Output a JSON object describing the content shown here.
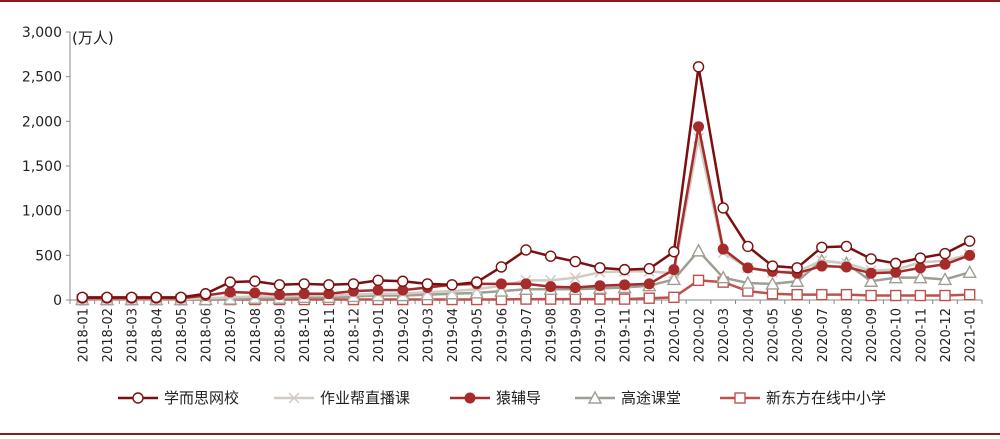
{
  "chart_data": {
    "type": "line",
    "unit_label": "(万人)",
    "ylim": [
      0,
      3000
    ],
    "yticks": [
      0,
      500,
      1000,
      1500,
      2000,
      2500,
      3000
    ],
    "ytick_labels": [
      "0",
      "500",
      "1,000",
      "1,500",
      "2,000",
      "2,500",
      "3,000"
    ],
    "grid": false,
    "legend_position": "bottom",
    "categories": [
      "2018-01",
      "2018-02",
      "2018-03",
      "2018-04",
      "2018-05",
      "2018-06",
      "2018-07",
      "2018-08",
      "2018-09",
      "2018-10",
      "2018-11",
      "2018-12",
      "2019-01",
      "2019-02",
      "2019-03",
      "2019-04",
      "2019-05",
      "2019-06",
      "2019-07",
      "2019-08",
      "2019-09",
      "2019-10",
      "2019-11",
      "2019-12",
      "2020-01",
      "2020-02",
      "2020-03",
      "2020-04",
      "2020-05",
      "2020-06",
      "2020-07",
      "2020-08",
      "2020-09",
      "2020-10",
      "2020-11",
      "2020-12",
      "2021-01"
    ],
    "series": [
      {
        "name": "学而思网校",
        "color": "#7b0f0f",
        "marker": "circle-open",
        "values": [
          30,
          30,
          30,
          30,
          30,
          70,
          200,
          210,
          170,
          180,
          170,
          180,
          220,
          210,
          180,
          170,
          200,
          370,
          560,
          490,
          430,
          360,
          340,
          350,
          540,
          2610,
          1030,
          600,
          380,
          360,
          590,
          600,
          460,
          410,
          470,
          520,
          660
        ]
      },
      {
        "name": "作业帮直播课",
        "color": "#d0ccc4",
        "marker": "x",
        "values": [
          10,
          10,
          10,
          10,
          10,
          20,
          30,
          40,
          40,
          50,
          50,
          60,
          70,
          70,
          90,
          100,
          120,
          160,
          220,
          220,
          250,
          310,
          320,
          320,
          300,
          1810,
          530,
          360,
          310,
          320,
          440,
          410,
          330,
          340,
          420,
          440,
          510
        ]
      },
      {
        "name": "猿辅导",
        "color": "#a62b2b",
        "marker": "circle-filled",
        "values": [
          20,
          20,
          20,
          20,
          20,
          50,
          90,
          80,
          60,
          70,
          70,
          100,
          110,
          110,
          140,
          170,
          180,
          180,
          180,
          150,
          140,
          160,
          170,
          180,
          340,
          1940,
          570,
          360,
          320,
          300,
          380,
          370,
          300,
          310,
          360,
          400,
          500
        ]
      },
      {
        "name": "高途课堂",
        "color": "#9e9e94",
        "marker": "triangle-open",
        "values": [
          5,
          5,
          5,
          5,
          5,
          5,
          10,
          20,
          20,
          30,
          30,
          40,
          50,
          50,
          60,
          70,
          80,
          100,
          120,
          120,
          120,
          130,
          140,
          160,
          230,
          550,
          250,
          190,
          180,
          210,
          440,
          410,
          210,
          250,
          250,
          230,
          310
        ]
      },
      {
        "name": "新东方在线中小学",
        "color": "#c0504d",
        "marker": "square-open",
        "values": [
          5,
          5,
          5,
          5,
          5,
          5,
          5,
          5,
          5,
          5,
          5,
          5,
          5,
          5,
          5,
          5,
          5,
          5,
          10,
          10,
          10,
          10,
          10,
          20,
          30,
          220,
          200,
          100,
          70,
          60,
          60,
          60,
          50,
          50,
          50,
          50,
          60
        ]
      }
    ]
  }
}
